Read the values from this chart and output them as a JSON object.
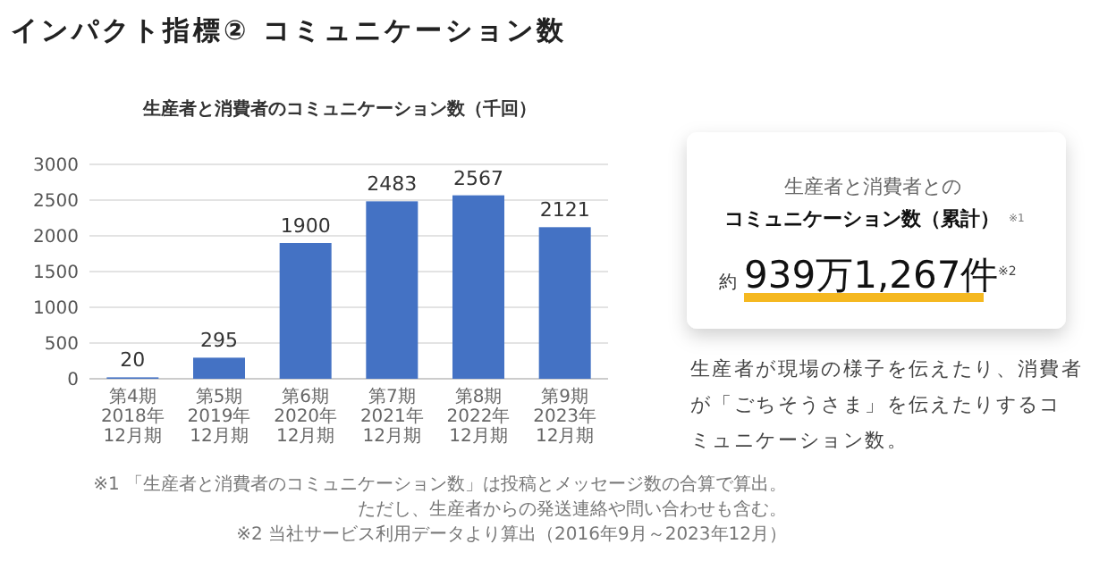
{
  "chart_data": [
    {
      "type": "bar",
      "title": "インパクト指標② コミュニケーション数",
      "subtitle": "生産者と消費者のコミュニケーション数（千回）",
      "categories": [
        "第4期\n2018年\n12月期",
        "第5期\n2019年\n12月期",
        "第6期\n2020年\n12月期",
        "第7期\n2021年\n12月期",
        "第8期\n2022年\n12月期",
        "第9期\n2023年\n12月期"
      ],
      "values": [
        20,
        295,
        1900,
        2483,
        2567,
        2121
      ],
      "color": "#4472c4",
      "ylim": [
        0,
        3000
      ],
      "yticks": [
        0,
        500,
        1000,
        1500,
        2000,
        2500,
        3000
      ],
      "grid": "y",
      "data_labels": true,
      "annotations": [
        "※1 「生産者と消費者のコミュニケーション数」は投稿とメッセージ数の合算で算出。",
        "ただし、生産者からの発送連絡や問い合わせも含む。",
        "※2 当社サービス利用データより算出（2016年9月～2023年12月）"
      ]
    },
    {
      "type": "other",
      "title": "生産者と消費者との",
      "subtitle": "コミュニケーション数（累計）",
      "annotations": [
        "※1",
        "約",
        "939万1,267件",
        "※2",
        "生産者が現場の様子を伝えたり、消費者",
        "が「ごちそうさま」を伝えたりするコ",
        "ミュニケーション数。"
      ]
    }
  ]
}
